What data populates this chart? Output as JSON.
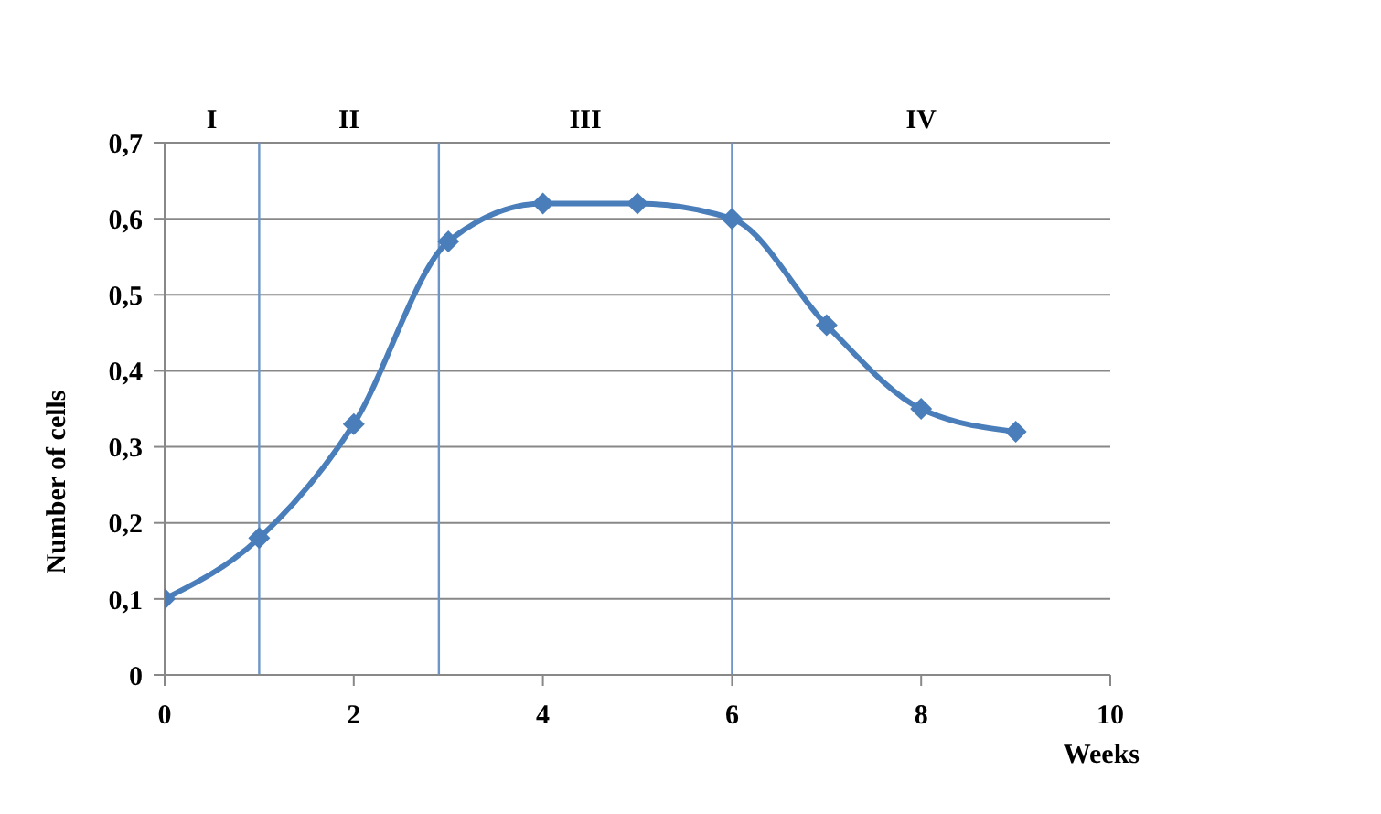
{
  "chart_data": {
    "type": "line",
    "xlabel": "Weeks",
    "ylabel": "Number of cells",
    "x": [
      0,
      1,
      2,
      3,
      4,
      5,
      6,
      7,
      8,
      9
    ],
    "series": [
      {
        "color": "#4a7ebb",
        "values": [
          0.1,
          0.18,
          0.33,
          0.57,
          0.62,
          0.62,
          0.6,
          0.46,
          0.35,
          0.32
        ]
      }
    ],
    "xlim": [
      0,
      10
    ],
    "xticks": [
      0,
      2,
      4,
      6,
      8,
      10
    ],
    "ylim": [
      0,
      0.7
    ],
    "yticks": [
      0,
      {
        "value": 0.1,
        "label": "0,1"
      },
      {
        "value": 0.2,
        "label": "0,2"
      },
      {
        "value": 0.3,
        "label": "0,3"
      },
      {
        "value": 0.4,
        "label": "0,4"
      },
      {
        "value": 0.5,
        "label": "0,5"
      },
      {
        "value": 0.6,
        "label": "0,6"
      },
      {
        "value": 0.7,
        "label": "0,7"
      }
    ],
    "grid": "y",
    "marker": "diamond",
    "line_style": "solid",
    "legend": false,
    "ref_lines": [
      {
        "axis": "x",
        "value": 1,
        "color": "#6f95c8"
      },
      {
        "axis": "x",
        "value": 2.9,
        "color": "#6f95c8"
      },
      {
        "axis": "x",
        "value": 6,
        "color": "#6f95c8"
      }
    ],
    "annotations": [
      "I",
      "II",
      "III",
      "IV"
    ]
  }
}
